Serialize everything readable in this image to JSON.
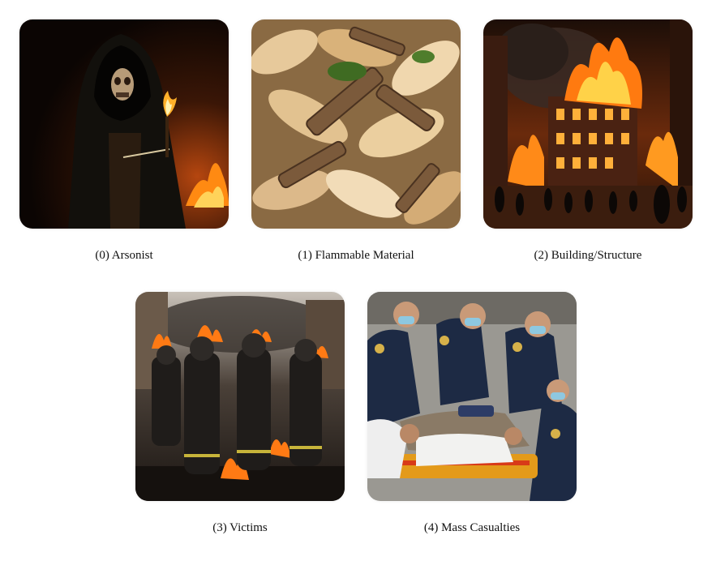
{
  "panels": [
    {
      "caption": "(0) Arsonist"
    },
    {
      "caption": "(1) Flammable Material"
    },
    {
      "caption": "(2) Building/Structure"
    },
    {
      "caption": "(3) Victims"
    },
    {
      "caption": "(4) Mass Casualties"
    }
  ]
}
